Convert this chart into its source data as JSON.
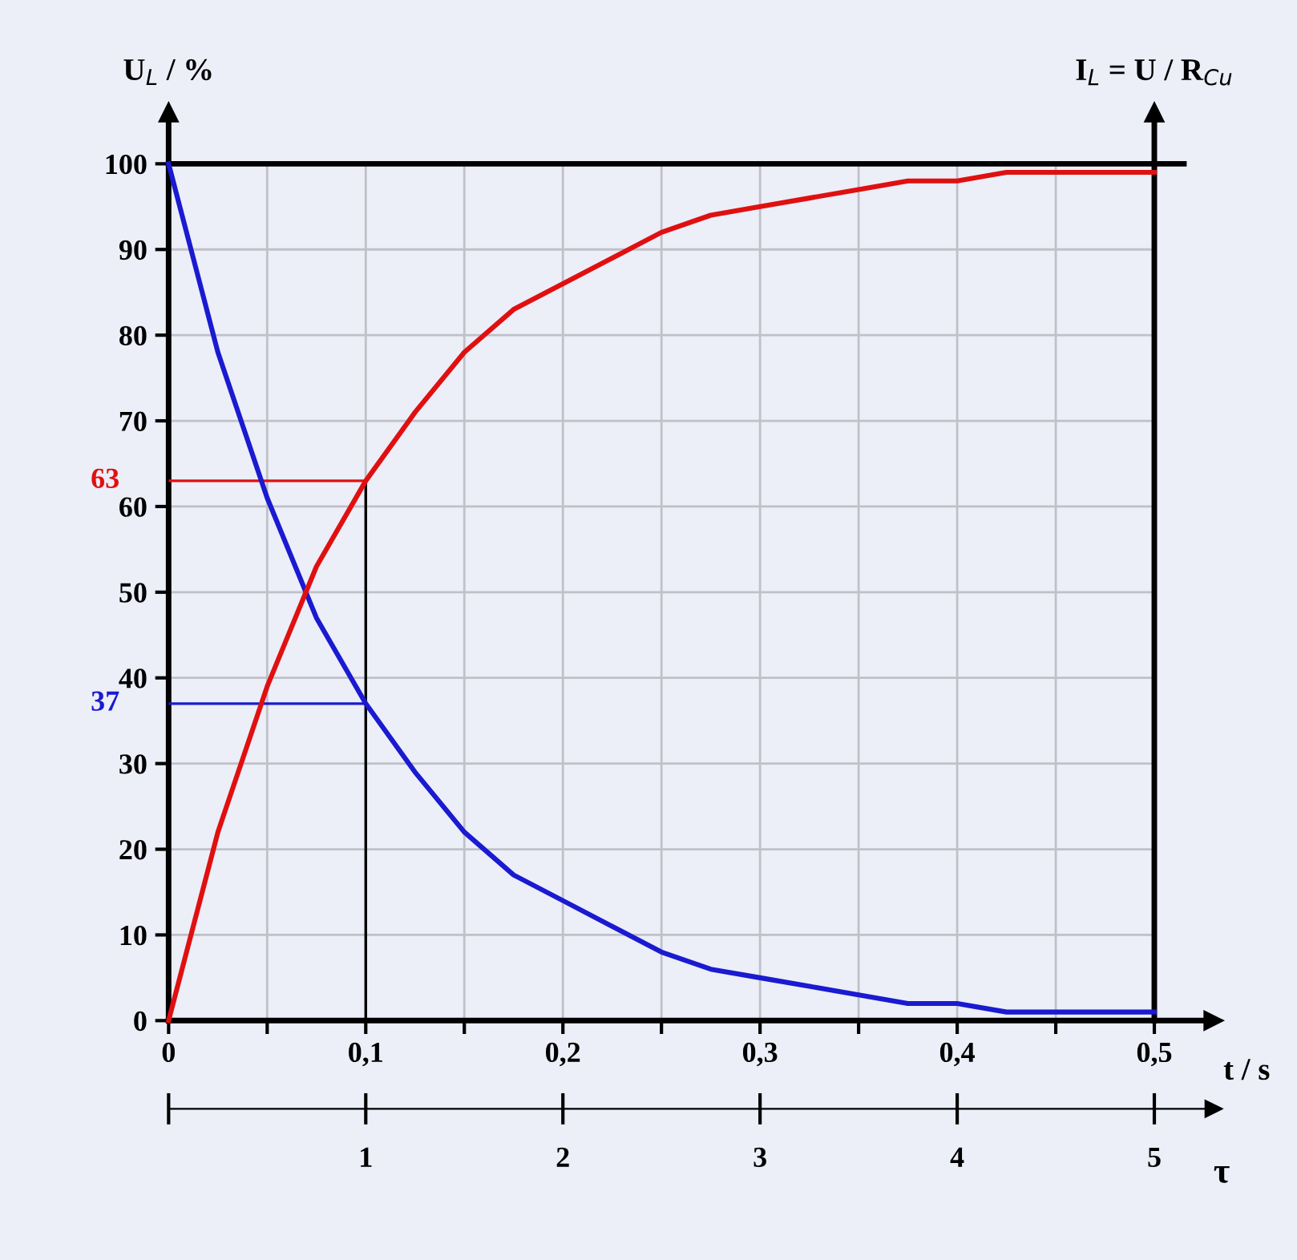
{
  "chart_data": {
    "type": "line",
    "ylabel": "U$_{L}$ / %",
    "xlabel": "t / s",
    "x2label": "τ",
    "x": [
      0,
      0.025,
      0.05,
      0.075,
      0.1,
      0.125,
      0.15,
      0.175,
      0.2,
      0.225,
      0.25,
      0.275,
      0.3,
      0.325,
      0.35,
      0.375,
      0.4,
      0.425,
      0.45,
      0.475,
      0.5
    ],
    "series": [
      {
        "color": "#1a1ad0",
        "values": [
          100,
          78,
          61,
          47,
          37,
          29,
          22,
          17,
          14,
          11,
          8,
          6,
          5,
          4,
          3,
          2,
          2,
          1,
          1,
          1,
          1
        ]
      },
      {
        "color": "#e01010",
        "values": [
          0,
          22,
          39,
          53,
          63,
          71,
          78,
          83,
          86,
          89,
          92,
          94,
          95,
          96,
          97,
          98,
          98,
          99,
          99,
          99,
          99
        ]
      }
    ],
    "xlim": [
      0,
      0.5
    ],
    "ylim": [
      0,
      100
    ],
    "xticks": [
      0,
      {
        "value": 0.05,
        "label": null
      },
      {
        "value": 0.1,
        "label": "0,1"
      },
      {
        "value": 0.15,
        "label": null
      },
      {
        "value": 0.2,
        "label": "0,2"
      },
      {
        "value": 0.25,
        "label": null
      },
      {
        "value": 0.3,
        "label": "0,3"
      },
      {
        "value": 0.35,
        "label": null
      },
      {
        "value": 0.4,
        "label": "0,4"
      },
      {
        "value": 0.45,
        "label": null
      },
      {
        "value": 0.5,
        "label": "0,5"
      }
    ],
    "yticks": [
      0,
      10,
      20,
      30,
      40,
      50,
      60,
      70,
      80,
      90,
      100
    ],
    "x2lim": [
      0,
      5
    ],
    "x2ticks": [
      {
        "value": 0,
        "label": null
      },
      1,
      2,
      3,
      4,
      5
    ],
    "ref_lines": [
      {
        "axis": "x",
        "value": 0.1,
        "color": "#000000"
      },
      {
        "axis": "y",
        "value": 63,
        "label": "63",
        "color": "#e01010"
      },
      {
        "axis": "y",
        "value": 37,
        "label": "37",
        "color": "#1a1ad0"
      }
    ],
    "y2label": "I$_{L}$ = U / R$_{Cu}$",
    "grid": true,
    "marker": "none",
    "line_style": "solid"
  }
}
